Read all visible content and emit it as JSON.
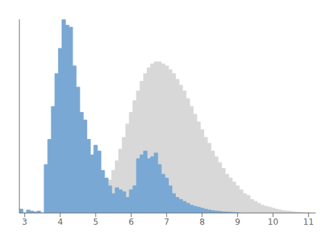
{
  "chart_data": {
    "type": "histogram",
    "xlim": [
      2.85,
      11.2
    ],
    "xticks": [
      3,
      4,
      5,
      6,
      7,
      8,
      9,
      10,
      11
    ],
    "ylim": [
      0,
      1
    ],
    "tick_labels": "x",
    "grid": false,
    "series": [
      {
        "color": "#d8d8d8",
        "bins": [
          4.75,
          4.85,
          4.95,
          5.05,
          5.15,
          5.25,
          5.35,
          5.45,
          5.55,
          5.65,
          5.75,
          5.85,
          5.95,
          6.05,
          6.15,
          6.25,
          6.35,
          6.45,
          6.55,
          6.65,
          6.75,
          6.85,
          6.95,
          7.05,
          7.15,
          7.25,
          7.35,
          7.45,
          7.55,
          7.65,
          7.75,
          7.85,
          7.95,
          8.05,
          8.15,
          8.25,
          8.35,
          8.45,
          8.55,
          8.65,
          8.75,
          8.85,
          8.95,
          9.05,
          9.15,
          9.25,
          9.35,
          9.45,
          9.55,
          9.65,
          9.75,
          9.85,
          9.95,
          10.05,
          10.15,
          10.25,
          10.35,
          10.45,
          10.55,
          10.65,
          10.75,
          10.85,
          10.95,
          11.05
        ],
        "values": [
          0.01,
          0.02,
          0.04,
          0.06,
          0.09,
          0.13,
          0.17,
          0.22,
          0.27,
          0.33,
          0.39,
          0.46,
          0.52,
          0.58,
          0.63,
          0.68,
          0.72,
          0.75,
          0.77,
          0.78,
          0.78,
          0.77,
          0.76,
          0.74,
          0.72,
          0.69,
          0.66,
          0.63,
          0.59,
          0.55,
          0.51,
          0.47,
          0.43,
          0.39,
          0.36,
          0.32,
          0.29,
          0.26,
          0.23,
          0.2,
          0.18,
          0.16,
          0.14,
          0.12,
          0.1,
          0.09,
          0.07,
          0.06,
          0.05,
          0.04,
          0.035,
          0.03,
          0.025,
          0.02,
          0.015,
          0.012,
          0.01,
          0.008,
          0.006,
          0.004,
          0.003,
          0.002,
          0.001
        ]
      },
      {
        "color": "#7aa8d4",
        "bins": [
          2.85,
          2.95,
          3.05,
          3.15,
          3.25,
          3.35,
          3.45,
          3.55,
          3.65,
          3.75,
          3.85,
          3.95,
          4.05,
          4.15,
          4.25,
          4.35,
          4.45,
          4.55,
          4.65,
          4.75,
          4.85,
          4.95,
          5.05,
          5.15,
          5.25,
          5.35,
          5.45,
          5.55,
          5.65,
          5.75,
          5.85,
          5.95,
          6.05,
          6.15,
          6.25,
          6.35,
          6.45,
          6.55,
          6.65,
          6.75,
          6.85,
          6.95,
          7.05,
          7.15,
          7.25,
          7.35,
          7.45,
          7.55,
          7.65,
          7.75,
          7.85,
          7.95,
          8.05,
          8.15,
          8.25,
          8.35,
          8.45,
          8.55,
          8.65,
          8.75,
          8.85,
          8.95,
          9.05
        ],
        "values": [
          0.02,
          0.0,
          0.015,
          0.01,
          0.005,
          0.01,
          0.0,
          0.25,
          0.38,
          0.55,
          0.72,
          0.85,
          1.0,
          0.97,
          0.96,
          0.76,
          0.65,
          0.52,
          0.48,
          0.38,
          0.3,
          0.35,
          0.32,
          0.22,
          0.18,
          0.14,
          0.1,
          0.13,
          0.12,
          0.11,
          0.08,
          0.12,
          0.14,
          0.28,
          0.3,
          0.32,
          0.28,
          0.29,
          0.31,
          0.25,
          0.2,
          0.18,
          0.14,
          0.1,
          0.08,
          0.07,
          0.06,
          0.05,
          0.04,
          0.035,
          0.03,
          0.025,
          0.02,
          0.015,
          0.012,
          0.01,
          0.008,
          0.006,
          0.005,
          0.004,
          0.003,
          0.002
        ]
      }
    ]
  }
}
